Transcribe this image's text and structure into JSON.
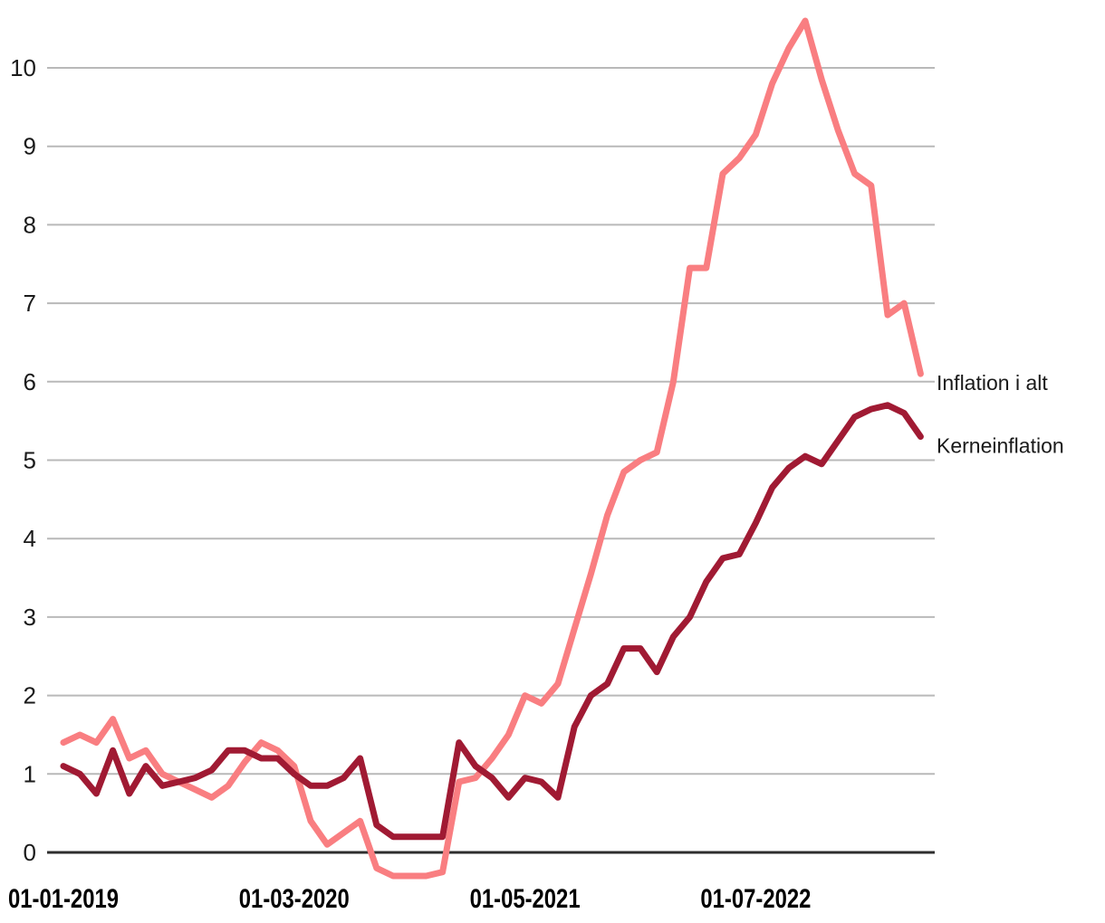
{
  "chart_data": {
    "type": "line",
    "title": "",
    "xlabel": "",
    "ylabel": "",
    "grid": "horizontal",
    "legend_position": "end-of-line-right",
    "ylim": [
      -0.45,
      10.7
    ],
    "y_ticks": [
      0,
      1,
      2,
      3,
      4,
      5,
      6,
      7,
      8,
      9,
      10
    ],
    "x_ticks": [
      {
        "label": "01-01-2019",
        "index": 0
      },
      {
        "label": "01-03-2020",
        "index": 14
      },
      {
        "label": "01-05-2021",
        "index": 28
      },
      {
        "label": "01-07-2022",
        "index": 42
      }
    ],
    "x": [
      "01-01-2019",
      "01-02-2019",
      "01-03-2019",
      "01-04-2019",
      "01-05-2019",
      "01-06-2019",
      "01-07-2019",
      "01-08-2019",
      "01-09-2019",
      "01-10-2019",
      "01-11-2019",
      "01-12-2019",
      "01-01-2020",
      "01-02-2020",
      "01-03-2020",
      "01-04-2020",
      "01-05-2020",
      "01-06-2020",
      "01-07-2020",
      "01-08-2020",
      "01-09-2020",
      "01-10-2020",
      "01-11-2020",
      "01-12-2020",
      "01-01-2021",
      "01-02-2021",
      "01-03-2021",
      "01-04-2021",
      "01-05-2021",
      "01-06-2021",
      "01-07-2021",
      "01-08-2021",
      "01-09-2021",
      "01-10-2021",
      "01-11-2021",
      "01-12-2021",
      "01-01-2022",
      "01-02-2022",
      "01-03-2022",
      "01-04-2022",
      "01-05-2022",
      "01-06-2022",
      "01-07-2022",
      "01-08-2022",
      "01-09-2022",
      "01-10-2022",
      "01-11-2022",
      "01-12-2022",
      "01-01-2023",
      "01-02-2023",
      "01-03-2023",
      "01-04-2023",
      "01-05-2023"
    ],
    "series": [
      {
        "name": "Inflation i alt",
        "color": "#f97e81",
        "values": [
          1.4,
          1.5,
          1.4,
          1.7,
          1.2,
          1.3,
          1.0,
          0.9,
          0.8,
          0.7,
          0.85,
          1.15,
          1.4,
          1.3,
          1.1,
          0.4,
          0.1,
          0.25,
          0.4,
          -0.2,
          -0.3,
          -0.3,
          -0.3,
          -0.25,
          0.9,
          0.95,
          1.2,
          1.5,
          2.0,
          1.9,
          2.15,
          2.85,
          3.55,
          4.3,
          4.85,
          5.0,
          5.1,
          6.0,
          7.45,
          7.45,
          8.65,
          8.85,
          9.15,
          9.8,
          10.25,
          10.6,
          9.85,
          9.2,
          8.65,
          8.5,
          6.85,
          7.0,
          6.1
        ]
      },
      {
        "name": "Kerneinflation",
        "color": "#a01a33",
        "values": [
          1.1,
          1.0,
          0.75,
          1.3,
          0.75,
          1.1,
          0.85,
          0.9,
          0.95,
          1.05,
          1.3,
          1.3,
          1.2,
          1.2,
          1.0,
          0.85,
          0.85,
          0.95,
          1.2,
          0.35,
          0.2,
          0.2,
          0.2,
          0.2,
          1.4,
          1.1,
          0.95,
          0.7,
          0.95,
          0.9,
          0.7,
          1.6,
          2.0,
          2.15,
          2.6,
          2.6,
          2.3,
          2.75,
          3.0,
          3.45,
          3.75,
          3.8,
          4.2,
          4.65,
          4.9,
          5.05,
          4.95,
          5.25,
          5.55,
          5.65,
          5.7,
          5.6,
          5.3
        ]
      }
    ],
    "colors": {
      "grid": "#b9b9b9",
      "zero_line": "#2e2e2e",
      "y_tick_label": "#1a1a1a",
      "x_tick_label": "#000000",
      "series_end_label": "#1a1a1a",
      "background": "#ffffff"
    }
  }
}
